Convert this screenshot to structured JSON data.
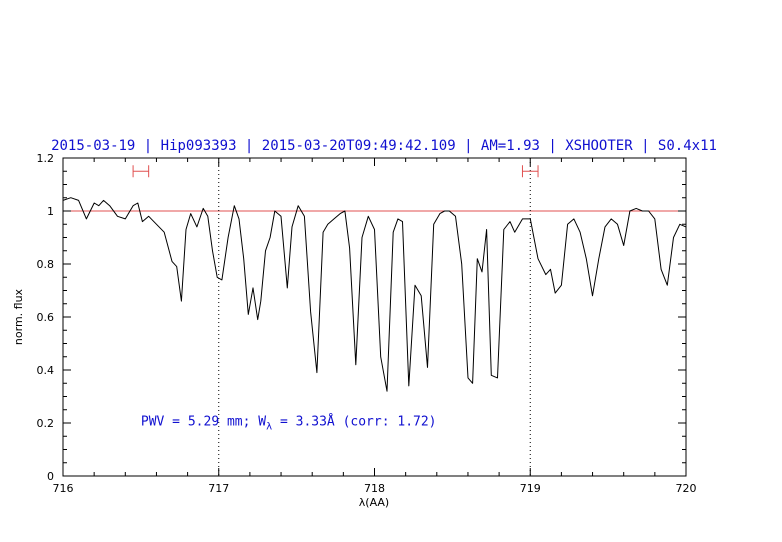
{
  "chart_data": {
    "type": "line",
    "title": "2015-03-19 | Hip093393 | 2015-03-20T09:49:42.109 | AM=1.93 | XSHOOTER | S0.4x11",
    "xlabel": "λ(AA)",
    "ylabel": "norm. flux",
    "xlim": [
      716,
      720
    ],
    "ylim": [
      0,
      1.2
    ],
    "x_ticks": [
      716,
      717,
      718,
      719,
      720
    ],
    "y_ticks": [
      0,
      0.2,
      0.4,
      0.6,
      0.8,
      1,
      1.2
    ],
    "x_tick_labels": [
      "716",
      "717",
      "718",
      "719",
      "720"
    ],
    "y_tick_labels": [
      "0",
      "0.2",
      "0.4",
      "0.6",
      "0.8",
      "1",
      "1.2"
    ],
    "grid": false,
    "reference_line": {
      "y": 1.0,
      "color": "#e05050"
    },
    "vertical_lines": [
      717,
      719
    ],
    "continuum_windows": [
      [
        716.45,
        716.55
      ],
      [
        718.95,
        719.05
      ]
    ],
    "window_marker_y": 1.15,
    "annotation": {
      "prefix": "PWV = 5.29 mm; W",
      "subscript": "λ",
      "suffix": " = 3.33Å (corr: 1.72)",
      "x": 716.5,
      "y": 0.19
    },
    "series": [
      {
        "color": "#000000",
        "x": [
          716.0,
          716.05,
          716.1,
          716.15,
          716.2,
          716.23,
          716.26,
          716.3,
          716.35,
          716.4,
          716.45,
          716.48,
          716.51,
          716.55,
          716.6,
          716.65,
          716.7,
          716.73,
          716.76,
          716.79,
          716.82,
          716.86,
          716.9,
          716.93,
          716.96,
          716.99,
          717.02,
          717.06,
          717.1,
          717.13,
          717.16,
          717.19,
          717.22,
          717.25,
          717.27,
          717.3,
          717.33,
          717.36,
          717.4,
          717.44,
          717.47,
          717.51,
          717.55,
          717.59,
          717.63,
          717.67,
          717.7,
          717.74,
          717.78,
          717.81,
          717.84,
          717.88,
          717.92,
          717.96,
          718.0,
          718.04,
          718.08,
          718.12,
          718.15,
          718.18,
          718.22,
          718.26,
          718.3,
          718.34,
          718.38,
          718.42,
          718.45,
          718.48,
          718.52,
          718.56,
          718.6,
          718.63,
          718.66,
          718.69,
          718.72,
          718.75,
          718.79,
          718.83,
          718.87,
          718.9,
          718.95,
          719.0,
          719.05,
          719.1,
          719.13,
          719.16,
          719.2,
          719.24,
          719.28,
          719.32,
          719.36,
          719.4,
          719.44,
          719.48,
          719.52,
          719.56,
          719.6,
          719.64,
          719.68,
          719.72,
          719.76,
          719.8,
          719.84,
          719.88,
          719.92,
          719.96,
          720.0
        ],
        "y": [
          1.04,
          1.05,
          1.04,
          0.97,
          1.03,
          1.02,
          1.04,
          1.02,
          0.98,
          0.97,
          1.02,
          1.03,
          0.96,
          0.98,
          0.95,
          0.92,
          0.81,
          0.79,
          0.66,
          0.93,
          0.99,
          0.94,
          1.01,
          0.98,
          0.85,
          0.75,
          0.74,
          0.9,
          1.02,
          0.97,
          0.82,
          0.61,
          0.71,
          0.59,
          0.66,
          0.85,
          0.9,
          1.0,
          0.98,
          0.71,
          0.94,
          1.02,
          0.98,
          0.62,
          0.39,
          0.92,
          0.95,
          0.97,
          0.99,
          1.0,
          0.86,
          0.42,
          0.9,
          0.98,
          0.93,
          0.45,
          0.32,
          0.92,
          0.97,
          0.96,
          0.34,
          0.72,
          0.68,
          0.41,
          0.95,
          0.99,
          1.0,
          1.0,
          0.98,
          0.8,
          0.37,
          0.35,
          0.82,
          0.77,
          0.93,
          0.38,
          0.37,
          0.93,
          0.96,
          0.92,
          0.97,
          0.97,
          0.82,
          0.76,
          0.78,
          0.69,
          0.72,
          0.95,
          0.97,
          0.92,
          0.82,
          0.68,
          0.82,
          0.94,
          0.97,
          0.95,
          0.87,
          1.0,
          1.01,
          1.0,
          1.0,
          0.97,
          0.78,
          0.72,
          0.9,
          0.95,
          0.94
        ]
      }
    ]
  }
}
